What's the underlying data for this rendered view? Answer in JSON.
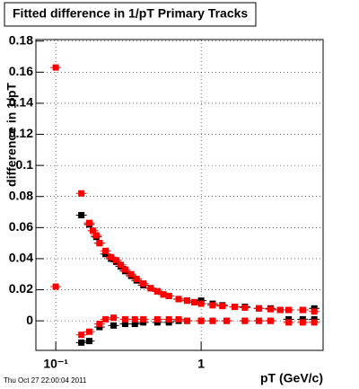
{
  "chart_data": {
    "type": "scatter",
    "title": "Fitted difference in 1/pT  Primary Tracks",
    "x_label": "pT (GeV/c)",
    "y_label": "difference in 1/pT",
    "footer": "Thu Oct 27 22:00:04 2011",
    "log_x": true,
    "grid": true,
    "xlim": [
      0.073,
      6.9
    ],
    "xticks": [
      {
        "value": 0.1,
        "label": "10⁻¹"
      },
      1
    ],
    "ylim": [
      -0.019,
      0.181
    ],
    "yticks": [
      0,
      0.02,
      0.04,
      0.06,
      0.08,
      0.1,
      0.12,
      0.14,
      0.16,
      0.18
    ],
    "series": [
      {
        "color": "#000000",
        "x": [
          0.15,
          0.17,
          0.19,
          0.2,
          0.22,
          0.24,
          0.26,
          0.28,
          0.3,
          0.33,
          0.36,
          0.4,
          0.45,
          0.5,
          0.55,
          0.6,
          0.7,
          0.8,
          0.9,
          1.0,
          1.2,
          1.4,
          1.7,
          2.0,
          2.5,
          3.0,
          3.5,
          4.0,
          5.0,
          6.0
        ],
        "values": [
          0.068,
          0.062,
          0.054,
          0.05,
          0.043,
          0.04,
          0.038,
          0.035,
          0.032,
          0.029,
          0.026,
          0.023,
          0.021,
          0.019,
          0.017,
          0.016,
          0.014,
          0.013,
          0.012,
          0.013,
          0.011,
          0.01,
          0.009,
          0.009,
          0.008,
          0.008,
          0.007,
          0.007,
          0.007,
          0.008
        ]
      },
      {
        "color": "#000000",
        "x": [
          0.15,
          0.17,
          0.2,
          0.25,
          0.3,
          0.35,
          0.4,
          0.5,
          0.6,
          0.7,
          0.8,
          1.0,
          1.2,
          1.5,
          2.0,
          2.5,
          3.0,
          4.0,
          5.0,
          6.0
        ],
        "values": [
          -0.014,
          -0.013,
          -0.004,
          -0.003,
          -0.002,
          -0.002,
          -0.001,
          -0.001,
          -0.001,
          0,
          0,
          0,
          0,
          0,
          0,
          0,
          0,
          0.001,
          0.001,
          0.001
        ]
      },
      {
        "color": "#ff0000",
        "x": [
          0.1,
          0.15,
          0.17,
          0.18,
          0.19,
          0.2,
          0.22,
          0.24,
          0.26,
          0.28,
          0.3,
          0.33,
          0.36,
          0.4,
          0.45,
          0.5,
          0.55,
          0.6,
          0.7,
          0.8,
          0.9,
          1.0,
          1.2,
          1.4,
          1.7,
          2.0,
          2.5,
          3.0,
          3.5,
          4.0,
          5.0,
          6.0
        ],
        "values": [
          0.163,
          0.082,
          0.063,
          0.058,
          0.055,
          0.05,
          0.045,
          0.041,
          0.039,
          0.036,
          0.033,
          0.03,
          0.027,
          0.024,
          0.021,
          0.019,
          0.017,
          0.016,
          0.014,
          0.013,
          0.012,
          0.011,
          0.01,
          0.0095,
          0.009,
          0.0085,
          0.008,
          0.0075,
          0.007,
          0.007,
          0.007,
          0.006
        ]
      },
      {
        "color": "#ff0000",
        "x": [
          0.1,
          0.15,
          0.17,
          0.2,
          0.22,
          0.25,
          0.3,
          0.35,
          0.4,
          0.5,
          0.6,
          0.7,
          0.8,
          1.0,
          1.2,
          1.5,
          2.0,
          2.5,
          3.0,
          4.0,
          5.0,
          6.0
        ],
        "values": [
          0.022,
          -0.009,
          -0.007,
          -0.002,
          0.001,
          0.002,
          0.001,
          0.001,
          0.001,
          0.001,
          0.001,
          0.001,
          0,
          0,
          0,
          0,
          0,
          0,
          0,
          -0.001,
          -0.001,
          -0.001
        ]
      }
    ]
  }
}
